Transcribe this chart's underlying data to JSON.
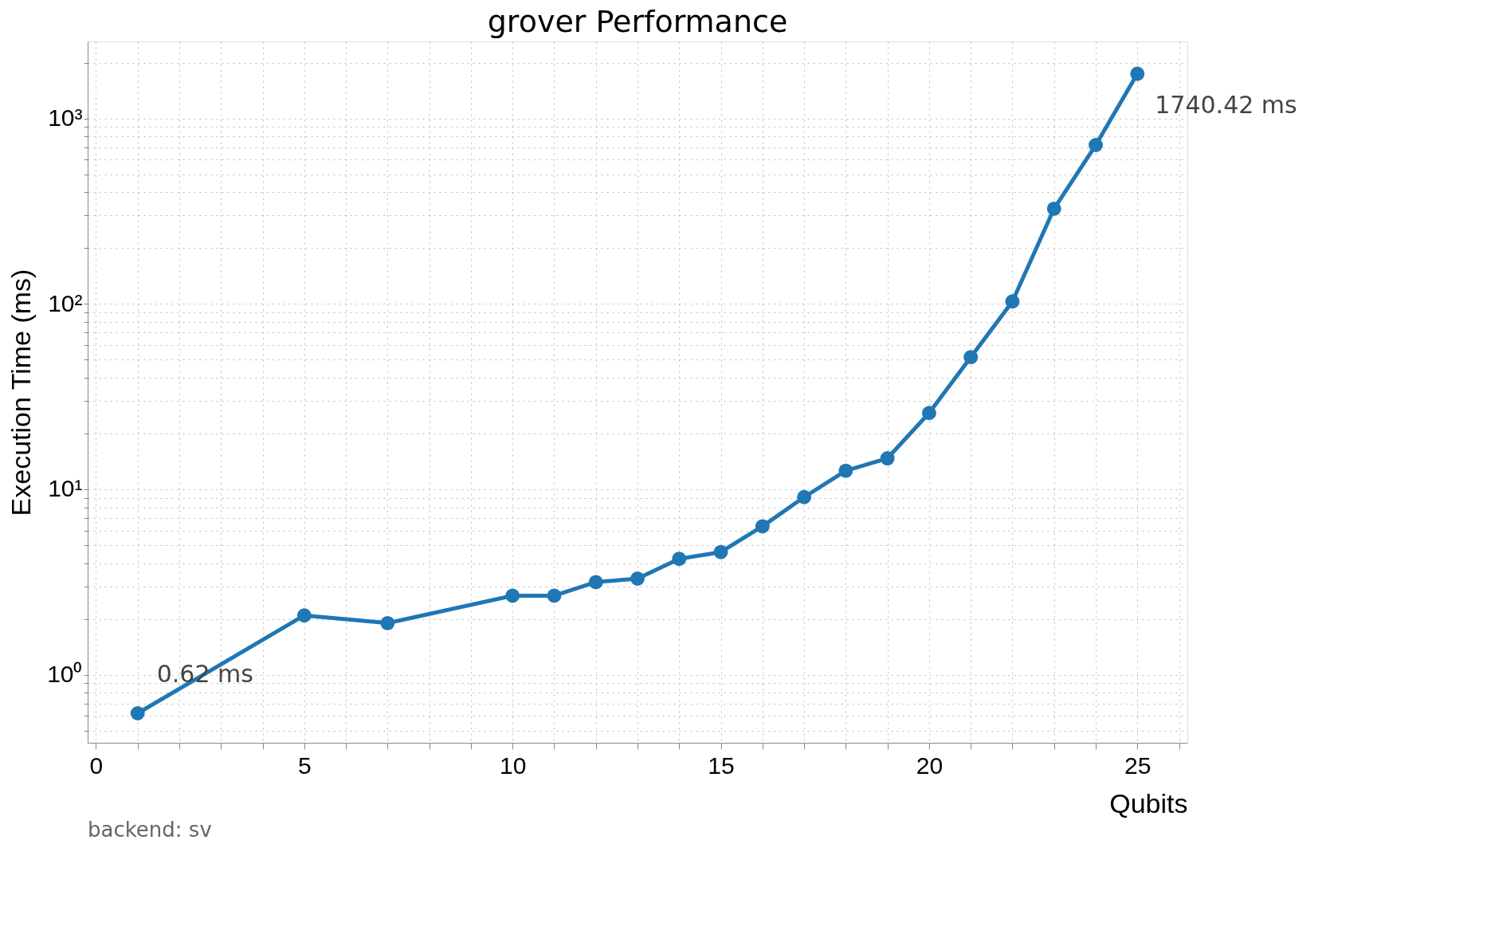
{
  "chart_data": {
    "type": "line",
    "title": "grover Performance",
    "xlabel": "Qubits",
    "ylabel": "Execution Time (ms)",
    "x": [
      1,
      5,
      7,
      10,
      11,
      12,
      13,
      14,
      15,
      16,
      17,
      18,
      19,
      20,
      21,
      22,
      23,
      24,
      25
    ],
    "series": [
      {
        "color": "#1f77b4",
        "values": [
          0.62,
          2.09,
          1.9,
          2.67,
          2.67,
          3.16,
          3.3,
          4.22,
          4.59,
          6.32,
          9.08,
          12.6,
          14.7,
          25.8,
          51.6,
          103,
          326,
          718,
          1740.42
        ]
      }
    ],
    "log": "y",
    "grid": true,
    "marker": "circle",
    "line_style": "solid",
    "xlim": [
      -0.2,
      26.2
    ],
    "ylim": [
      0.43,
      2600
    ],
    "xticks": [
      0,
      5,
      10,
      15,
      20,
      25
    ],
    "yticks": [
      {
        "value": 1,
        "label": "10⁰"
      },
      {
        "value": 10,
        "label": "10¹"
      },
      {
        "value": 100,
        "label": "10²"
      },
      {
        "value": 1000,
        "label": "10³"
      }
    ],
    "annotations": [
      {
        "text": "0.62 ms",
        "x": 1,
        "y": 0.62
      },
      {
        "text": "1740.42 ms",
        "x": 25,
        "y": 1740.42
      },
      "backend: sv"
    ]
  }
}
